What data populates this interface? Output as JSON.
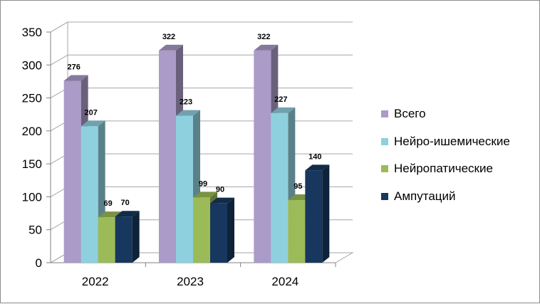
{
  "chart_data": {
    "type": "bar",
    "categories": [
      "2022",
      "2023",
      "2024"
    ],
    "series": [
      {
        "name": "Всего",
        "values": [
          276,
          322,
          322
        ],
        "color": "#ab9bc8"
      },
      {
        "name": "Нейро-ишемические",
        "values": [
          207,
          223,
          227
        ],
        "color": "#8fd0df"
      },
      {
        "name": "Нейропатические",
        "values": [
          69,
          99,
          95
        ],
        "color": "#9bbb59"
      },
      {
        "name": "Ампутаций",
        "values": [
          70,
          90,
          140
        ],
        "color": "#17375e"
      }
    ],
    "ylim": [
      0,
      350
    ],
    "yticks": [
      "0",
      "50",
      "100",
      "150",
      "200",
      "250",
      "300",
      "350"
    ],
    "grid": true,
    "legend_position": "right",
    "style": "3d-clustered-column"
  }
}
